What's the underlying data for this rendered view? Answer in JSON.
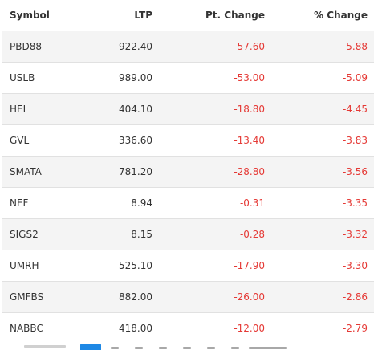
{
  "table": {
    "headers": {
      "symbol": "Symbol",
      "ltp": "LTP",
      "pt_change": "Pt. Change",
      "pct_change": "% Change"
    },
    "rows": [
      {
        "symbol": "PBD88",
        "ltp": "922.40",
        "pt_change": "-57.60",
        "pct_change": "-5.88"
      },
      {
        "symbol": "USLB",
        "ltp": "989.00",
        "pt_change": "-53.00",
        "pct_change": "-5.09"
      },
      {
        "symbol": "HEI",
        "ltp": "404.10",
        "pt_change": "-18.80",
        "pct_change": "-4.45"
      },
      {
        "symbol": "GVL",
        "ltp": "336.60",
        "pt_change": "-13.40",
        "pct_change": "-3.83"
      },
      {
        "symbol": "SMATA",
        "ltp": "781.20",
        "pt_change": "-28.80",
        "pct_change": "-3.56"
      },
      {
        "symbol": "NEF",
        "ltp": "8.94",
        "pt_change": "-0.31",
        "pct_change": "-3.35"
      },
      {
        "symbol": "SIGS2",
        "ltp": "8.15",
        "pt_change": "-0.28",
        "pct_change": "-3.32"
      },
      {
        "symbol": "UMRH",
        "ltp": "525.10",
        "pt_change": "-17.90",
        "pct_change": "-3.30"
      },
      {
        "symbol": "GMFBS",
        "ltp": "882.00",
        "pt_change": "-26.00",
        "pct_change": "-2.86"
      },
      {
        "symbol": "NABBC",
        "ltp": "418.00",
        "pt_change": "-12.00",
        "pct_change": "-2.79"
      }
    ]
  },
  "colors": {
    "negative": "#e53935",
    "stripe": "#f4f4f4",
    "border": "#e1e1e1",
    "pager_active": "#1e88e5"
  }
}
